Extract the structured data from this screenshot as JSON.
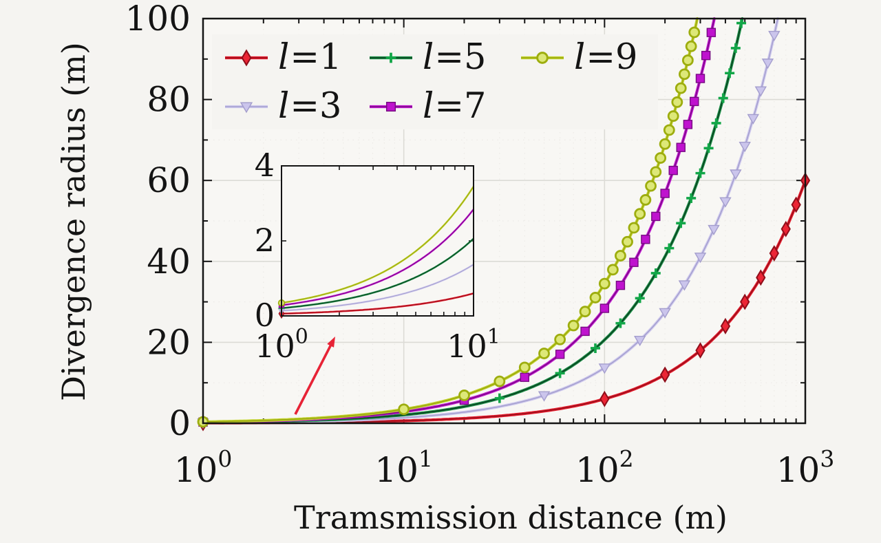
{
  "figure": {
    "background": "#f5f4f1",
    "plot_background": "#f8f7f4",
    "axis_color": "#141414",
    "grid_color": "#dcdbd6",
    "minor_grid_color": "#eceae6"
  },
  "chart_data": {
    "type": "line",
    "title": "",
    "xlabel": "Tramsmission distance (m)",
    "ylabel": "Divergence radius (m)",
    "xscale": "log",
    "xlim": [
      1,
      1000
    ],
    "ylim": [
      0,
      100
    ],
    "grid": true,
    "legend_position": "top-left inside",
    "x_ticks": [
      {
        "base": "10",
        "exp": "0"
      },
      {
        "base": "10",
        "exp": "1"
      },
      {
        "base": "10",
        "exp": "2"
      },
      {
        "base": "10",
        "exp": "3"
      }
    ],
    "y_ticks": [
      "0",
      "20",
      "40",
      "60",
      "80",
      "100"
    ],
    "series": [
      {
        "name": "l=1",
        "label_var": "l",
        "label_rest": "=1",
        "color": "#e71a2b",
        "core": "#93101c",
        "marker": "thin-diamond",
        "marker_fill": "#ec2535",
        "marker_stroke": "#8f0e1a",
        "slope": 0.06,
        "marker_step": 100,
        "points": [
          [
            1,
            0.06
          ],
          [
            2,
            0.12
          ],
          [
            5,
            0.3
          ],
          [
            10,
            0.6
          ],
          [
            20,
            1.2
          ],
          [
            50,
            3
          ],
          [
            100,
            6
          ],
          [
            200,
            12
          ],
          [
            500,
            30
          ],
          [
            1000,
            60
          ]
        ]
      },
      {
        "name": "l=3",
        "label_var": "l",
        "label_rest": "=3",
        "color": "#cfcaee",
        "core": "#a49ecd",
        "marker": "triangle-down",
        "marker_fill": "#cbc5ec",
        "marker_stroke": "#a49ecd",
        "slope": 0.137,
        "marker_step": 50,
        "points": [
          [
            1,
            0.14
          ],
          [
            2,
            0.27
          ],
          [
            5,
            0.69
          ],
          [
            10,
            1.37
          ],
          [
            20,
            2.74
          ],
          [
            50,
            6.85
          ],
          [
            100,
            13.7
          ],
          [
            200,
            27.4
          ],
          [
            500,
            68.5
          ],
          [
            730,
            100
          ]
        ]
      },
      {
        "name": "l=5",
        "label_var": "l",
        "label_rest": "=5",
        "color": "#1b8f47",
        "core": "#0a3b1e",
        "marker": "plus",
        "marker_fill": "none",
        "marker_stroke": "#12a648",
        "slope": 0.206,
        "marker_step": 30,
        "points": [
          [
            1,
            0.21
          ],
          [
            2,
            0.41
          ],
          [
            5,
            1.03
          ],
          [
            10,
            2.06
          ],
          [
            20,
            4.12
          ],
          [
            50,
            10.3
          ],
          [
            100,
            20.6
          ],
          [
            200,
            41.2
          ],
          [
            485,
            100
          ]
        ]
      },
      {
        "name": "l=7",
        "label_var": "l",
        "label_rest": "=7",
        "color": "#c217d1",
        "core": "#770b82",
        "marker": "square",
        "marker_fill": "#bf13ce",
        "marker_stroke": "#770b82",
        "slope": 0.284,
        "marker_step": 20,
        "points": [
          [
            1,
            0.28
          ],
          [
            2,
            0.57
          ],
          [
            5,
            1.42
          ],
          [
            10,
            2.84
          ],
          [
            20,
            5.68
          ],
          [
            50,
            14.2
          ],
          [
            100,
            28.4
          ],
          [
            200,
            56.8
          ],
          [
            352,
            100
          ]
        ]
      },
      {
        "name": "l=9",
        "label_var": "l",
        "label_rest": "=9",
        "color": "#c2d32b",
        "core": "#97a410",
        "marker": "circle",
        "marker_fill": "#dde878",
        "marker_stroke": "#9dad0e",
        "slope": 0.345,
        "marker_step": 10,
        "points": [
          [
            1,
            0.35
          ],
          [
            2,
            0.69
          ],
          [
            5,
            1.73
          ],
          [
            10,
            3.45
          ],
          [
            20,
            6.9
          ],
          [
            50,
            17.3
          ],
          [
            100,
            34.5
          ],
          [
            200,
            69
          ],
          [
            290,
            100
          ]
        ]
      }
    ],
    "inset": {
      "description": "zoomed view of z = 1 to 10",
      "xscale": "log",
      "xlim": [
        1,
        10
      ],
      "ylim": [
        0,
        4
      ],
      "x_ticks": [
        {
          "base": "10",
          "exp": "0"
        },
        {
          "base": "10",
          "exp": "1"
        }
      ],
      "y_ticks": [
        "0",
        "2",
        "4"
      ],
      "has_zoom_arrow": true,
      "arrow_color": "#e72336"
    }
  }
}
